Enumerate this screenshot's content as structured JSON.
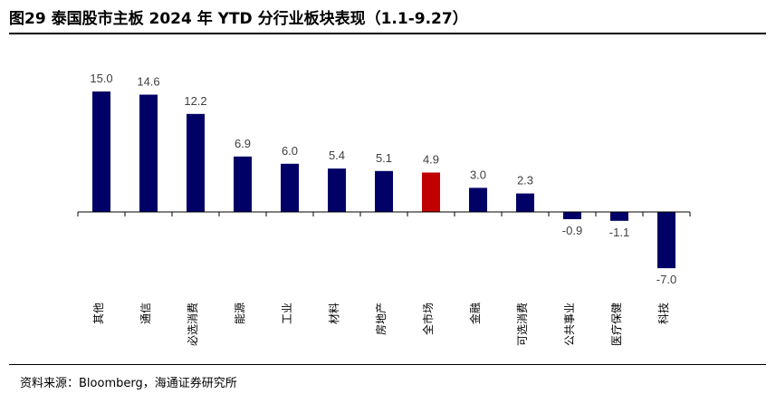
{
  "title": "图29 泰国股市主板 2024 年 YTD 分行业板块表现（1.1-9.27）",
  "source": "资料来源：Bloomberg，海通证券研究所",
  "colors": {
    "default_bar": "#000066",
    "highlight_bar": "#C00000",
    "axis": "#000000"
  },
  "chart_data": {
    "type": "bar",
    "title": "图29 泰国股市主板 2024 年 YTD 分行业板块表现（1.1-9.27）",
    "xlabel": "",
    "ylabel": "",
    "categories": [
      "其他",
      "通信",
      "必选消费",
      "能源",
      "工业",
      "材料",
      "房地产",
      "全市场",
      "金融",
      "可选消费",
      "公共事业",
      "医疗保健",
      "科技"
    ],
    "values": [
      15.0,
      14.6,
      12.2,
      6.9,
      6.0,
      5.4,
      5.1,
      4.9,
      3.0,
      2.3,
      -0.9,
      -1.1,
      -7.0
    ],
    "labels": [
      "15.0",
      "14.6",
      "12.2",
      "6.9",
      "6.0",
      "5.4",
      "5.1",
      "4.9",
      "3.0",
      "2.3",
      "-0.9",
      "-1.1",
      "-7.0"
    ],
    "highlight": "全市场",
    "ylim": [
      -8,
      16
    ],
    "grid": false,
    "legend": "none"
  }
}
